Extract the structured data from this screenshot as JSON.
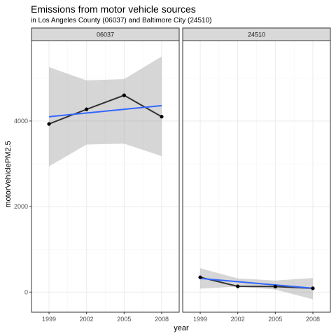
{
  "chart_data": {
    "type": "line",
    "title": "Emissions from motor vehicle sources",
    "subtitle": "in Los Angeles County (06037) and Baltimore City (24510)",
    "xlabel": "year",
    "ylabel": "motorVehiclePM2.5",
    "x_ticks": [
      1999,
      2002,
      2005,
      2008
    ],
    "y_ticks": [
      0,
      2000,
      4000
    ],
    "xlim": [
      1997.6,
      2009.4
    ],
    "ylim": [
      -470,
      5880
    ],
    "grid": true,
    "legend": "none",
    "colors": {
      "observed": "#333333",
      "fit": "#3366FF",
      "ribbon": "#999999"
    },
    "facets": [
      {
        "strip": "06037",
        "x": [
          1999,
          2002,
          2005,
          2008
        ],
        "values": [
          3931,
          4274,
          4601,
          4101
        ],
        "fit": {
          "x": [
            1999,
            2008
          ],
          "y": [
            4100,
            4360
          ]
        },
        "ribbon": {
          "x": [
            1999,
            2002,
            2005,
            2008
          ],
          "lower": [
            2940,
            3450,
            3470,
            3180
          ],
          "upper": [
            5260,
            4950,
            4980,
            5510
          ]
        }
      },
      {
        "strip": "24510",
        "x": [
          1999,
          2002,
          2005,
          2008
        ],
        "values": [
          347,
          134,
          130,
          89
        ],
        "fit": {
          "x": [
            1999,
            2008
          ],
          "y": [
            320,
            90
          ]
        },
        "ribbon": {
          "x": [
            1999,
            2002,
            2005,
            2008
          ],
          "lower": [
            80,
            130,
            60,
            -170
          ],
          "upper": [
            560,
            320,
            270,
            330
          ]
        }
      }
    ]
  }
}
